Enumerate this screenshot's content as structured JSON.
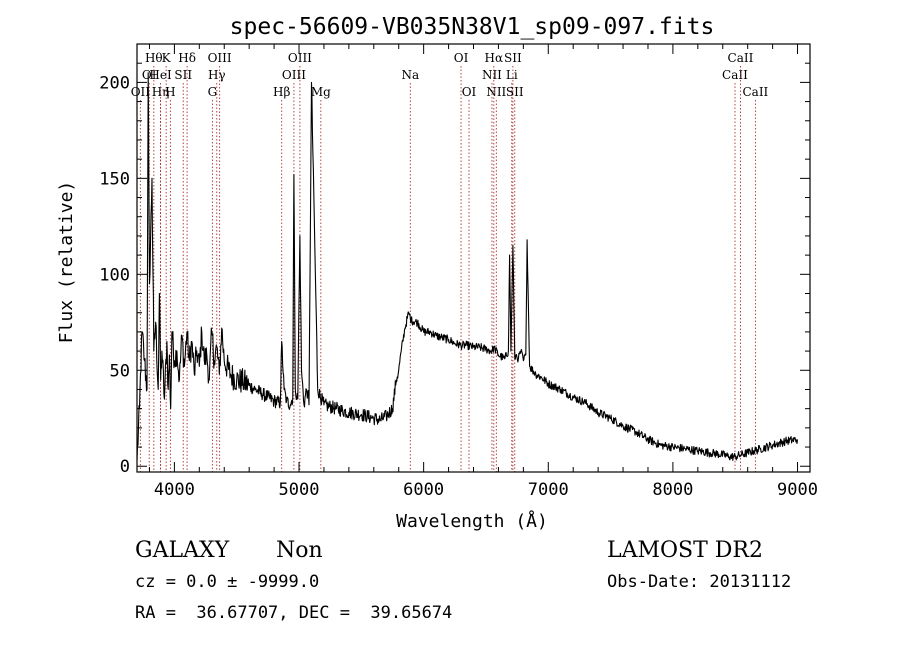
{
  "chart_data": {
    "type": "line",
    "title": "spec-56609-VB035N38V1_sp09-097.fits",
    "xlabel": "Wavelength (Å)",
    "ylabel": "Flux (relative)",
    "xlim": [
      3700,
      9100
    ],
    "ylim": [
      -3,
      220
    ],
    "x_ticks": [
      4000,
      5000,
      6000,
      7000,
      8000,
      9000
    ],
    "y_ticks": [
      0,
      50,
      100,
      150,
      200
    ],
    "grid": false,
    "line_color": "#000000",
    "marker_color": "#b03030",
    "spectrum": {
      "x": [
        3700,
        3720,
        3740,
        3760,
        3780,
        3790,
        3800,
        3820,
        3835,
        3850,
        3870,
        3880,
        3890,
        3900,
        3920,
        3940,
        3950,
        3960,
        3970,
        3980,
        4000,
        4020,
        4040,
        4060,
        4080,
        4100,
        4120,
        4140,
        4160,
        4180,
        4200,
        4220,
        4240,
        4260,
        4280,
        4300,
        4320,
        4340,
        4360,
        4380,
        4400,
        4450,
        4500,
        4550,
        4600,
        4650,
        4700,
        4750,
        4800,
        4850,
        4861,
        4880,
        4900,
        4930,
        4950,
        4959,
        4970,
        4990,
        5007,
        5020,
        5040,
        5060,
        5070,
        5080,
        5100,
        5150,
        5200,
        5300,
        5400,
        5500,
        5600,
        5650,
        5700,
        5750,
        5780,
        5800,
        5820,
        5850,
        5880,
        5900,
        5950,
        6000,
        6050,
        6100,
        6150,
        6200,
        6250,
        6300,
        6350,
        6400,
        6450,
        6500,
        6550,
        6563,
        6600,
        6650,
        6680,
        6690,
        6700,
        6716,
        6731,
        6740,
        6760,
        6780,
        6800,
        6820,
        6830,
        6850,
        6900,
        6950,
        7000,
        7100,
        7200,
        7300,
        7400,
        7500,
        7600,
        7700,
        7800,
        7900,
        8000,
        8100,
        8200,
        8300,
        8400,
        8450,
        8500,
        8550,
        8600,
        8700,
        8800,
        8900,
        9000
      ],
      "y": [
        3,
        30,
        70,
        55,
        40,
        205,
        95,
        150,
        60,
        75,
        40,
        90,
        45,
        60,
        35,
        65,
        40,
        58,
        30,
        70,
        55,
        60,
        45,
        68,
        52,
        70,
        55,
        65,
        48,
        60,
        52,
        70,
        55,
        58,
        45,
        70,
        55,
        62,
        48,
        72,
        55,
        48,
        45,
        44,
        42,
        40,
        38,
        36,
        34,
        33,
        65,
        40,
        34,
        32,
        36,
        152,
        40,
        35,
        120,
        50,
        32,
        40,
        38,
        32,
        200,
        40,
        32,
        30,
        28,
        27,
        25,
        24,
        26,
        30,
        45,
        50,
        60,
        72,
        80,
        76,
        75,
        70,
        70,
        68,
        67,
        66,
        64,
        63,
        63,
        62,
        62,
        61,
        60,
        62,
        58,
        56,
        60,
        110,
        60,
        115,
        56,
        58,
        56,
        60,
        55,
        58,
        118,
        52,
        48,
        46,
        43,
        40,
        36,
        33,
        28,
        25,
        21,
        18,
        14,
        11,
        10,
        9,
        8,
        7,
        6,
        5,
        5,
        6,
        7,
        9,
        11,
        13,
        14
      ]
    },
    "line_markers": [
      {
        "x": 3727,
        "row": 3,
        "label": "OII"
      },
      {
        "x": 3798,
        "row": 2,
        "label": "OI"
      },
      {
        "x": 3835,
        "row": 1,
        "label": "Hθ"
      },
      {
        "x": 3889,
        "row": 3,
        "label": "Hη"
      },
      {
        "x": 3934,
        "row": 1,
        "label": "K"
      },
      {
        "x": 3889,
        "row": 2,
        "label": "HeI"
      },
      {
        "x": 3968,
        "row": 3,
        "label": "H"
      },
      {
        "x": 4071,
        "row": 2,
        "label": "SII"
      },
      {
        "x": 4102,
        "row": 1,
        "label": "Hδ"
      },
      {
        "x": 4305,
        "row": 3,
        "label": "G"
      },
      {
        "x": 4340,
        "row": 2,
        "label": "Hγ"
      },
      {
        "x": 4363,
        "row": 1,
        "label": "OIII"
      },
      {
        "x": 4861,
        "row": 3,
        "label": "Hβ"
      },
      {
        "x": 4959,
        "row": 2,
        "label": "OIII"
      },
      {
        "x": 5007,
        "row": 1,
        "label": "OIII"
      },
      {
        "x": 5175,
        "row": 3,
        "label": "Mg"
      },
      {
        "x": 5893,
        "row": 2,
        "label": "Na"
      },
      {
        "x": 6300,
        "row": 1,
        "label": "OI"
      },
      {
        "x": 6364,
        "row": 3,
        "label": "OI"
      },
      {
        "x": 6548,
        "row": 2,
        "label": "NII"
      },
      {
        "x": 6563,
        "row": 1,
        "label": "Hα"
      },
      {
        "x": 6583,
        "row": 3,
        "label": "NII"
      },
      {
        "x": 6707,
        "row": 2,
        "label": "Li"
      },
      {
        "x": 6716,
        "row": 1,
        "label": "SII"
      },
      {
        "x": 6731,
        "row": 3,
        "label": "SII"
      },
      {
        "x": 8498,
        "row": 2,
        "label": "CaII"
      },
      {
        "x": 8542,
        "row": 1,
        "label": "CaII"
      },
      {
        "x": 8662,
        "row": 3,
        "label": "CaII"
      }
    ]
  },
  "info": {
    "class_label": "GALAXY",
    "subclass_label": "Non",
    "survey_label": "LAMOST DR2",
    "cz_label": "cz = 0.0 ± -9999.0",
    "obs_date_label": "Obs-Date: 20131112",
    "radec_label": "RA =  36.67707, DEC =  39.65674"
  }
}
